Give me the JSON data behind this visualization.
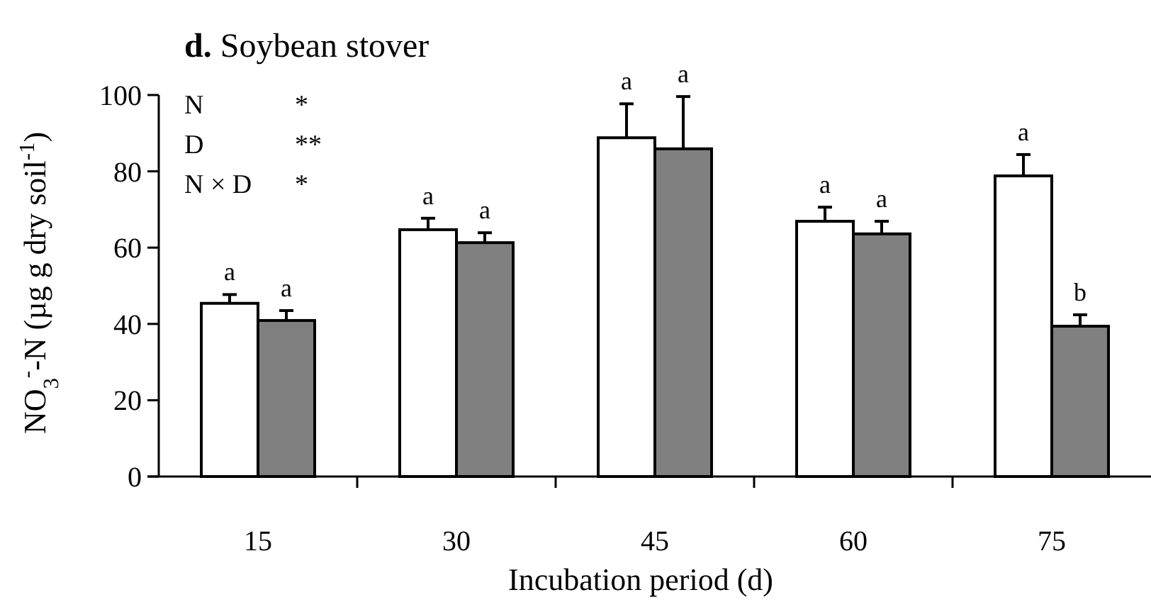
{
  "chart_data": {
    "type": "bar",
    "title": "d. Soybean stover",
    "xlabel": "Incubation period (d)",
    "ylabel": "NO$_{3}$$^{-}$-N (µg g dry soil$^{-1}$)",
    "categories": [
      "15",
      "30",
      "45",
      "60",
      "75"
    ],
    "series": [
      {
        "color": "#ffffff",
        "values": [
          45.4,
          64.7,
          88.8,
          66.9,
          78.8
        ],
        "errors": [
          [
            45.4,
            47.7
          ],
          [
            64.7,
            67.7
          ],
          [
            88.8,
            97.7
          ],
          [
            66.9,
            70.6
          ],
          [
            78.8,
            84.4
          ]
        ],
        "value_labels": [
          "a",
          "a",
          "a",
          "a",
          "a"
        ]
      },
      {
        "color": "#808080",
        "values": [
          40.9,
          61.3,
          85.9,
          63.6,
          39.4
        ],
        "errors": [
          [
            40.9,
            43.5
          ],
          [
            61.3,
            63.9
          ],
          [
            85.9,
            99.6
          ],
          [
            63.6,
            66.9
          ],
          [
            39.4,
            42.4
          ]
        ],
        "value_labels": [
          "a",
          "a",
          "a",
          "a",
          "b"
        ]
      }
    ],
    "ylim": [
      0,
      100
    ],
    "yticks": [
      0,
      20,
      40,
      60,
      80,
      100
    ],
    "annotations": [
      "N *",
      "D **",
      "N × D *"
    ]
  }
}
